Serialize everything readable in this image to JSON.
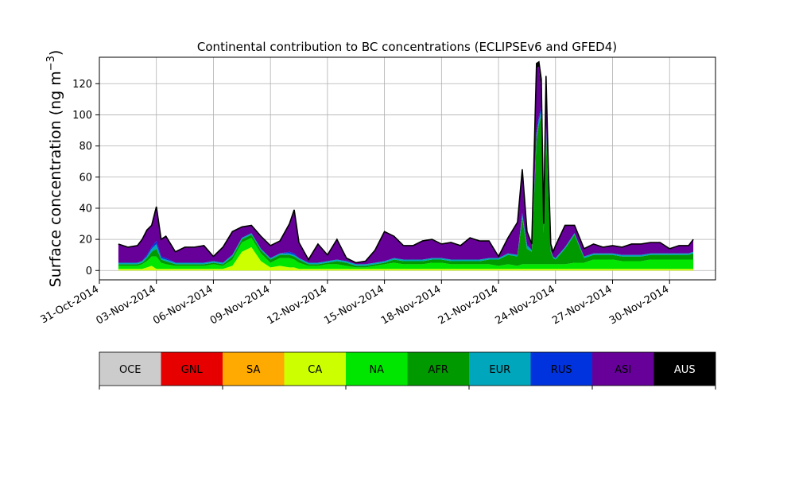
{
  "chart_data": {
    "type": "area",
    "stacked": true,
    "title": "Continental contribution to BC concentrations (ECLIPSEv6 and GFED4)",
    "ylabel": "Surface concentration (ng m",
    "ylabel_unit_exponent": "−3",
    "ylabel_close": ")",
    "xlim": [
      "2014-10-31",
      "2014-12-02T10:00"
    ],
    "ylim": [
      -6,
      137
    ],
    "x_ticks": [
      "31-Oct-2014",
      "03-Nov-2014",
      "06-Nov-2014",
      "09-Nov-2014",
      "12-Nov-2014",
      "15-Nov-2014",
      "18-Nov-2014",
      "21-Nov-2014",
      "24-Nov-2014",
      "27-Nov-2014",
      "30-Nov-2014"
    ],
    "x_tick_dates": [
      "2014-10-31",
      "2014-11-03",
      "2014-11-06",
      "2014-11-09",
      "2014-11-12",
      "2014-11-15",
      "2014-11-18",
      "2014-11-21",
      "2014-11-24",
      "2014-11-27",
      "2014-11-30"
    ],
    "y_ticks": [
      "0",
      "20",
      "40",
      "60",
      "80",
      "100",
      "120"
    ],
    "y_tick_values": [
      0,
      20,
      40,
      60,
      80,
      100,
      120
    ],
    "grid": true,
    "legend_placement": "below",
    "legend": [
      {
        "label": "OCE",
        "color": "#cccccc"
      },
      {
        "label": "GNL",
        "color": "#e60000"
      },
      {
        "label": "SA",
        "color": "#ffaa00"
      },
      {
        "label": "CA",
        "color": "#ccff00"
      },
      {
        "label": "NA",
        "color": "#00e600"
      },
      {
        "label": "AFR",
        "color": "#009900"
      },
      {
        "label": "EUR",
        "color": "#00a6bb"
      },
      {
        "label": "RUS",
        "color": "#0033dd"
      },
      {
        "label": "ASI",
        "color": "#660099"
      },
      {
        "label": "AUS",
        "color": "#000000"
      }
    ],
    "total_line_color": "#000000",
    "dates": [
      "2014-11-01",
      "2014-11-01T12:00",
      "2014-11-02",
      "2014-11-02T06:00",
      "2014-11-02T12:00",
      "2014-11-02T18:00",
      "2014-11-03",
      "2014-11-03T06:00",
      "2014-11-03T12:00",
      "2014-11-04",
      "2014-11-04T12:00",
      "2014-11-05",
      "2014-11-05T12:00",
      "2014-11-06",
      "2014-11-06T12:00",
      "2014-11-07",
      "2014-11-07T12:00",
      "2014-11-08",
      "2014-11-08T12:00",
      "2014-11-09",
      "2014-11-09T12:00",
      "2014-11-10",
      "2014-11-10T06:00",
      "2014-11-10T12:00",
      "2014-11-11",
      "2014-11-11T12:00",
      "2014-11-12",
      "2014-11-12T12:00",
      "2014-11-13",
      "2014-11-13T12:00",
      "2014-11-14",
      "2014-11-14T12:00",
      "2014-11-15",
      "2014-11-15T12:00",
      "2014-11-16",
      "2014-11-16T12:00",
      "2014-11-17",
      "2014-11-17T12:00",
      "2014-11-18",
      "2014-11-18T12:00",
      "2014-11-19",
      "2014-11-19T12:00",
      "2014-11-20",
      "2014-11-20T12:00",
      "2014-11-21",
      "2014-11-21T12:00",
      "2014-11-22",
      "2014-11-22T06:00",
      "2014-11-22T12:00",
      "2014-11-22T18:00",
      "2014-11-23",
      "2014-11-23T03:00",
      "2014-11-23T06:00",
      "2014-11-23T09:00",
      "2014-11-23T12:00",
      "2014-11-23T15:00",
      "2014-11-23T18:00",
      "2014-11-23T21:00",
      "2014-11-24",
      "2014-11-24T12:00",
      "2014-11-25",
      "2014-11-25T12:00",
      "2014-11-26",
      "2014-11-26T12:00",
      "2014-11-27",
      "2014-11-27T12:00",
      "2014-11-28",
      "2014-11-28T12:00",
      "2014-11-29",
      "2014-11-29T12:00",
      "2014-11-30",
      "2014-11-30T12:00",
      "2014-12-01",
      "2014-12-01T06:00"
    ],
    "series": [
      {
        "label": "CA",
        "values": [
          1,
          1,
          1,
          1,
          2,
          3,
          1,
          1,
          1,
          1,
          1,
          1,
          1,
          1,
          1,
          3,
          12,
          15,
          6,
          2,
          3,
          2,
          2,
          1,
          1,
          1,
          1,
          1,
          1,
          1,
          1,
          1,
          1,
          1,
          1,
          1,
          1,
          1,
          1,
          1,
          1,
          1,
          1,
          1,
          1,
          1,
          1,
          1,
          1,
          1,
          1,
          1,
          1,
          1,
          1,
          1,
          1,
          1,
          1,
          1,
          1,
          1,
          1,
          1,
          1,
          1,
          1,
          1,
          1,
          1,
          1,
          1,
          1,
          1
        ]
      },
      {
        "label": "NA",
        "values": [
          2,
          2,
          2,
          3,
          4,
          6,
          8,
          4,
          3,
          2,
          2,
          2,
          2,
          3,
          2,
          4,
          6,
          6,
          5,
          3,
          5,
          6,
          5,
          4,
          2,
          2,
          3,
          3,
          2,
          1,
          1,
          2,
          3,
          4,
          3,
          3,
          3,
          4,
          4,
          3,
          3,
          3,
          3,
          3,
          2,
          3,
          2,
          3,
          3,
          3,
          3,
          3,
          3,
          3,
          3,
          3,
          3,
          3,
          3,
          3,
          4,
          4,
          6,
          6,
          6,
          5,
          5,
          5,
          6,
          6,
          6,
          6,
          6,
          6
        ]
      },
      {
        "label": "AFR",
        "values": [
          1,
          1,
          1,
          1,
          2,
          3,
          5,
          2,
          2,
          1,
          1,
          1,
          1,
          1,
          1,
          2,
          2,
          2,
          2,
          2,
          2,
          2,
          2,
          2,
          1,
          1,
          1,
          2,
          2,
          1,
          1,
          1,
          1,
          2,
          2,
          2,
          2,
          2,
          2,
          2,
          2,
          2,
          2,
          3,
          4,
          6,
          6,
          30,
          10,
          8,
          80,
          90,
          95,
          20,
          85,
          45,
          8,
          4,
          3,
          10,
          18,
          3,
          3,
          3,
          3,
          3,
          3,
          3,
          3,
          3,
          3,
          3,
          3,
          4
        ]
      },
      {
        "label": "EUR",
        "values": [
          1,
          1,
          1,
          1,
          1,
          2,
          3,
          1,
          1,
          1,
          1,
          1,
          1,
          1,
          1,
          1,
          1,
          1,
          1,
          1,
          1,
          1,
          1,
          1,
          1,
          1,
          1,
          1,
          1,
          1,
          1,
          1,
          1,
          1,
          1,
          1,
          1,
          1,
          1,
          1,
          1,
          1,
          1,
          1,
          1,
          1,
          1,
          2,
          2,
          1,
          3,
          3,
          4,
          1,
          3,
          2,
          1,
          1,
          1,
          1,
          1,
          1,
          1,
          1,
          1,
          1,
          1,
          1,
          1,
          1,
          1,
          1,
          1,
          1
        ]
      },
      {
        "label": "RUS",
        "values": [
          0,
          0,
          0,
          0,
          1,
          1,
          2,
          1,
          1,
          0,
          0,
          0,
          0,
          0,
          0,
          0,
          0,
          0,
          0,
          0,
          0,
          1,
          1,
          0,
          0,
          0,
          0,
          0,
          0,
          0,
          0,
          0,
          0,
          0,
          0,
          0,
          0,
          0,
          0,
          0,
          0,
          0,
          0,
          0,
          0,
          0,
          0,
          1,
          1,
          0,
          2,
          2,
          2,
          1,
          2,
          1,
          0,
          0,
          0,
          0,
          0,
          0,
          0,
          0,
          0,
          0,
          0,
          0,
          0,
          0,
          0,
          0,
          0,
          0
        ]
      },
      {
        "label": "ASI",
        "values": [
          12,
          10,
          11,
          14,
          16,
          14,
          22,
          11,
          14,
          7,
          10,
          10,
          11,
          3,
          10,
          15,
          7,
          5,
          8,
          8,
          8,
          18,
          28,
          10,
          2,
          12,
          4,
          13,
          2,
          1,
          2,
          8,
          19,
          14,
          9,
          9,
          12,
          12,
          9,
          11,
          9,
          14,
          12,
          11,
          1,
          10,
          21,
          25,
          7,
          3,
          41,
          32,
          10,
          3,
          27,
          10,
          3,
          2,
          8,
          14,
          5,
          5,
          6,
          4,
          5,
          5,
          7,
          7,
          7,
          7,
          3,
          5,
          5,
          8
        ]
      },
      {
        "label": "AUS",
        "values": [
          0,
          0,
          0,
          0,
          0,
          0,
          0,
          0,
          0,
          0,
          0,
          0,
          0,
          0,
          0,
          0,
          0,
          0,
          0,
          0,
          0,
          0,
          0,
          0,
          0,
          0,
          0,
          0,
          0,
          0,
          0,
          0,
          0,
          0,
          0,
          0,
          0,
          0,
          0,
          0,
          0,
          0,
          0,
          0,
          0,
          0,
          0,
          3,
          1,
          1,
          3,
          3,
          8,
          1,
          4,
          2,
          1,
          1,
          0,
          0,
          0,
          0,
          0,
          0,
          0,
          0,
          0,
          0,
          0,
          0,
          0,
          0,
          0,
          0
        ]
      }
    ]
  }
}
